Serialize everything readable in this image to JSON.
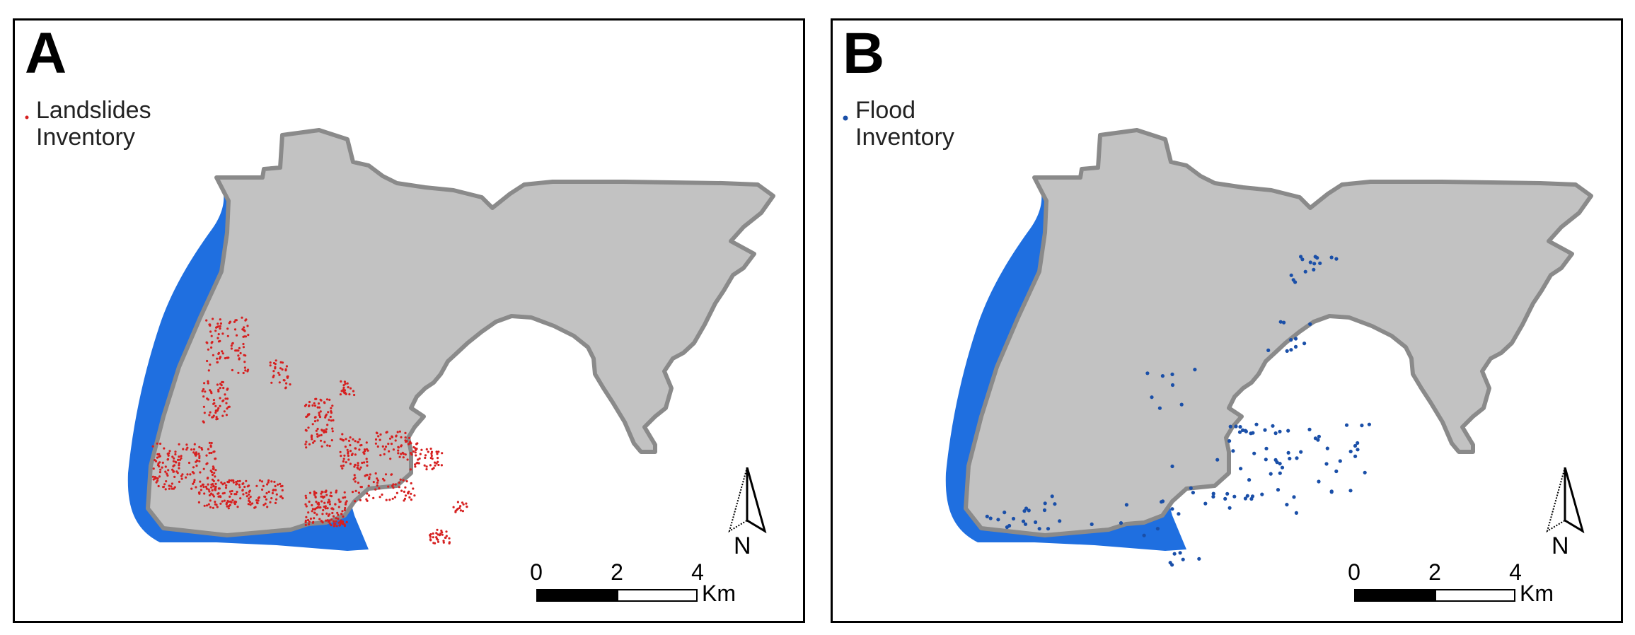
{
  "colors": {
    "land": "#c2c2c2",
    "land_outline": "#8a8a8a",
    "water": "#1f6fe0",
    "landslide": "#d62020",
    "flood": "#1a4fa8"
  },
  "panels": [
    {
      "id": "A",
      "letter": "A",
      "legend_label": "Landslides\nInventory",
      "legend_symbol": "red-dot",
      "north_label": "N",
      "scale_ticks": [
        "0",
        "2",
        "4"
      ],
      "scale_unit": "Km"
    },
    {
      "id": "B",
      "letter": "B",
      "legend_label": "Flood\nInventory",
      "legend_symbol": "blue-dot",
      "north_label": "N",
      "scale_ticks": [
        "0",
        "2",
        "4"
      ],
      "scale_unit": "Km"
    }
  ]
}
